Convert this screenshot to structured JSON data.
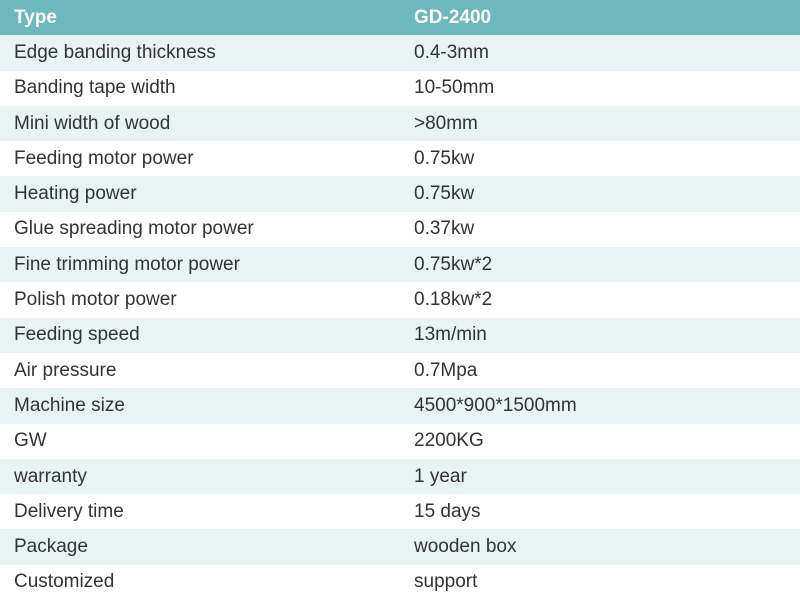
{
  "table": {
    "type": "table",
    "header_bg": "#6cb8bd",
    "header_fg": "#ffffff",
    "row_odd_bg": "#eaf3f4",
    "row_even_bg": "#ffffff",
    "cell_fg": "#333333",
    "font_family": "Arial",
    "header_fontsize_pt": 14,
    "cell_fontsize_pt": 14,
    "column_widths_pct": [
      50,
      50
    ],
    "columns": [
      "Type",
      "GD-2400"
    ],
    "rows": [
      [
        "Edge banding thickness",
        "0.4-3mm"
      ],
      [
        "Banding tape width",
        "10-50mm"
      ],
      [
        "Mini width of wood",
        ">80mm"
      ],
      [
        "Feeding motor power",
        "0.75kw"
      ],
      [
        "Heating power",
        "0.75kw"
      ],
      [
        "Glue spreading motor power",
        "0.37kw"
      ],
      [
        "Fine trimming motor power",
        "0.75kw*2"
      ],
      [
        "Polish motor power",
        "0.18kw*2"
      ],
      [
        "Feeding speed",
        "13m/min"
      ],
      [
        "Air pressure",
        "0.7Mpa"
      ],
      [
        "Machine size",
        "4500*900*1500mm"
      ],
      [
        "GW",
        "2200KG"
      ],
      [
        "warranty",
        "1 year"
      ],
      [
        "Delivery time",
        "15 days"
      ],
      [
        "Package",
        "wooden box"
      ],
      [
        "Customized",
        "support"
      ]
    ]
  }
}
